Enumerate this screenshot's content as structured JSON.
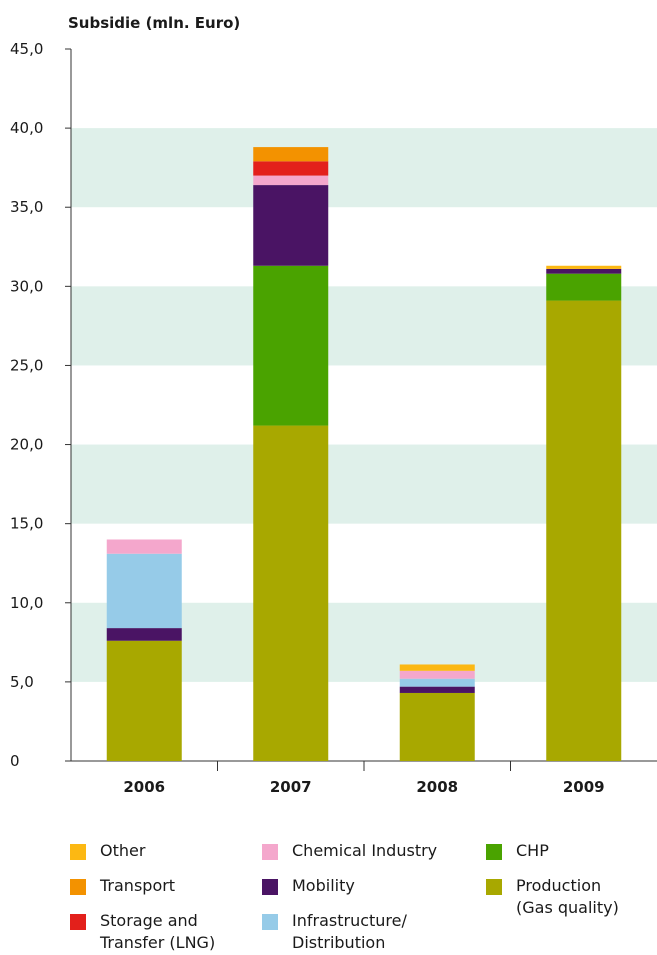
{
  "chart_data": {
    "type": "bar",
    "stacked": true,
    "ylabel": "Subsidie (mln. Euro)",
    "xlabel": "",
    "title": "",
    "categories": [
      "2006",
      "2007",
      "2008",
      "2009"
    ],
    "ylim": [
      0,
      45
    ],
    "y_ticks": [
      "0",
      "5,0",
      "10,0",
      "15,0",
      "20,0",
      "25,0",
      "30,0",
      "35,0",
      "40,0",
      "45,0"
    ],
    "y_tick_values": [
      0,
      5,
      10,
      15,
      20,
      25,
      30,
      35,
      40,
      45
    ],
    "background_bands": [
      [
        5,
        10
      ],
      [
        15,
        20
      ],
      [
        25,
        30
      ],
      [
        35,
        40
      ]
    ],
    "band_color": "#dff0ea",
    "series": [
      {
        "name": "Production (Gas quality)",
        "color": "#a8a800",
        "values": [
          7.6,
          21.2,
          4.3,
          29.1
        ]
      },
      {
        "name": "CHP",
        "color": "#4aa300",
        "values": [
          0,
          10.1,
          0,
          1.7
        ]
      },
      {
        "name": "Mobility",
        "color": "#4a1464",
        "values": [
          0.8,
          5.1,
          0.4,
          0.3
        ]
      },
      {
        "name": "Infrastructure/\nDistribution",
        "color": "#96cbe8",
        "values": [
          4.7,
          0,
          0.5,
          0
        ]
      },
      {
        "name": "Chemical Industry",
        "color": "#f4a7cc",
        "values": [
          0.9,
          0.6,
          0.5,
          0
        ]
      },
      {
        "name": "Storage and\nTransfer (LNG)",
        "color": "#e3201b",
        "values": [
          0,
          0.9,
          0,
          0
        ]
      },
      {
        "name": "Transport",
        "color": "#f39200",
        "values": [
          0,
          0.9,
          0,
          0
        ]
      },
      {
        "name": "Other",
        "color": "#fcb813",
        "values": [
          0,
          0,
          0.4,
          0.2
        ]
      }
    ]
  },
  "legend": [
    {
      "label": "Other",
      "color": "#fcb813"
    },
    {
      "label": "Transport",
      "color": "#f39200"
    },
    {
      "label": "Storage and\nTransfer (LNG)",
      "color": "#e3201b"
    },
    {
      "label": "Chemical Industry",
      "color": "#f4a7cc"
    },
    {
      "label": "Mobility",
      "color": "#4a1464"
    },
    {
      "label": "Infrastructure/\nDistribution",
      "color": "#96cbe8"
    },
    {
      "label": "CHP",
      "color": "#4aa300"
    },
    {
      "label": "Production\n(Gas quality)",
      "color": "#a8a800"
    }
  ]
}
